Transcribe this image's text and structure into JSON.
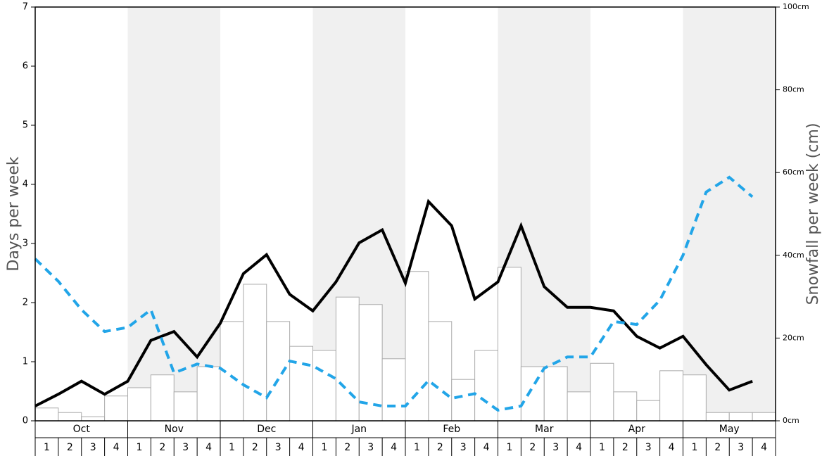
{
  "chart_data": {
    "type": "bar",
    "y_label": "Days per week",
    "y2_label": "Snowfall per week (cm)",
    "months": [
      "Oct",
      "Nov",
      "Dec",
      "Jan",
      "Feb",
      "Mar",
      "Apr",
      "May"
    ],
    "categories": [
      "1",
      "2",
      "3",
      "4",
      "1",
      "2",
      "3",
      "4",
      "1",
      "2",
      "3",
      "4",
      "1",
      "2",
      "3",
      "4",
      "1",
      "2",
      "3",
      "4",
      "1",
      "2",
      "3",
      "4",
      "1",
      "2",
      "3",
      "4",
      "1",
      "2",
      "3",
      "4"
    ],
    "ylim": [
      0,
      7
    ],
    "yticks": [
      0,
      1,
      2,
      3,
      4,
      5,
      6,
      7
    ],
    "y2lim": [
      0,
      100
    ],
    "y2ticks": [
      {
        "value": 0,
        "label": "0cm"
      },
      {
        "value": 20,
        "label": "20cm"
      },
      {
        "value": 40,
        "label": "40cm"
      },
      {
        "value": 60,
        "label": "60cm"
      },
      {
        "value": 80,
        "label": "80cm"
      },
      {
        "value": 100,
        "label": "100cm"
      }
    ],
    "series": [
      {
        "type": "bar",
        "axis": "y2",
        "color": "#ffffff",
        "values": [
          3.1,
          2.0,
          1.0,
          6.0,
          8.0,
          11.1,
          7.0,
          13.1,
          24.0,
          33.0,
          24.0,
          18.0,
          17.0,
          29.9,
          28.1,
          15.0,
          36.1,
          24.0,
          10.0,
          17.0,
          37.1,
          13.1,
          13.1,
          7.0,
          13.9,
          7.0,
          4.9,
          12.1,
          11.1,
          2.0,
          2.0,
          2.0
        ]
      },
      {
        "type": "line",
        "color": "#000000",
        "values": [
          0.25,
          0.45,
          0.67,
          0.45,
          0.67,
          1.36,
          1.51,
          1.08,
          1.65,
          2.49,
          2.81,
          2.14,
          1.86,
          2.35,
          3.01,
          3.23,
          2.33,
          3.71,
          3.3,
          2.06,
          2.35,
          3.3,
          2.27,
          1.92,
          1.92,
          1.86,
          1.43,
          1.23,
          1.43,
          0.95,
          0.52,
          0.67
        ]
      },
      {
        "type": "line",
        "color": "#22a5e8",
        "dashed": true,
        "values": [
          2.74,
          2.36,
          1.88,
          1.51,
          1.58,
          1.88,
          0.81,
          0.96,
          0.89,
          0.61,
          0.39,
          1.01,
          0.93,
          0.71,
          0.32,
          0.25,
          0.25,
          0.68,
          0.38,
          0.46,
          0.18,
          0.25,
          0.89,
          1.08,
          1.08,
          1.68,
          1.63,
          2.04,
          2.8,
          3.87,
          4.12,
          3.79
        ]
      }
    ]
  }
}
